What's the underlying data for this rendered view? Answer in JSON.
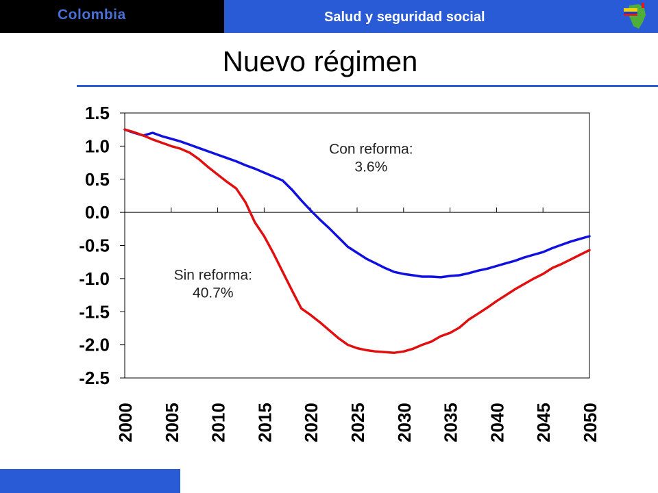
{
  "header": {
    "country": "Colombia",
    "section": "Salud y seguridad social",
    "logo_icon": "colombia-map-flag-icon",
    "colors": {
      "black_bar": "#000000",
      "blue_bar": "#2a5bd7",
      "country_text": "#4a6fd4"
    }
  },
  "page": {
    "title": "Nuevo régimen"
  },
  "chart_data": {
    "type": "line",
    "title": "",
    "xlabel": "",
    "ylabel": "",
    "xlim": [
      2000,
      2050
    ],
    "ylim": [
      -2.5,
      1.5
    ],
    "yticks": [
      "1.5",
      "1.0",
      "0.5",
      "0.0",
      "-0.5",
      "-1.0",
      "-1.5",
      "-2.0",
      "-2.5"
    ],
    "xticks": [
      "2000",
      "2005",
      "2010",
      "2015",
      "2020",
      "2025",
      "2030",
      "2035",
      "2040",
      "2045",
      "2050"
    ],
    "grid": false,
    "x": [
      2000,
      2001,
      2002,
      2003,
      2004,
      2005,
      2006,
      2007,
      2008,
      2009,
      2010,
      2011,
      2012,
      2013,
      2014,
      2015,
      2016,
      2017,
      2018,
      2019,
      2020,
      2021,
      2022,
      2023,
      2024,
      2025,
      2026,
      2027,
      2028,
      2029,
      2030,
      2031,
      2032,
      2033,
      2034,
      2035,
      2036,
      2037,
      2038,
      2039,
      2040,
      2041,
      2042,
      2043,
      2044,
      2045,
      2046,
      2047,
      2048,
      2049,
      2050
    ],
    "series": [
      {
        "name": "Con reforma",
        "color": "#1010e0",
        "values": [
          1.25,
          1.2,
          1.16,
          1.2,
          1.15,
          1.11,
          1.07,
          1.02,
          0.97,
          0.92,
          0.87,
          0.82,
          0.77,
          0.71,
          0.66,
          0.6,
          0.54,
          0.48,
          0.34,
          0.18,
          0.03,
          -0.11,
          -0.24,
          -0.38,
          -0.52,
          -0.61,
          -0.7,
          -0.77,
          -0.84,
          -0.9,
          -0.93,
          -0.95,
          -0.97,
          -0.97,
          -0.98,
          -0.96,
          -0.95,
          -0.92,
          -0.88,
          -0.85,
          -0.81,
          -0.77,
          -0.73,
          -0.68,
          -0.64,
          -0.6,
          -0.54,
          -0.49,
          -0.44,
          -0.4,
          -0.36
        ]
      },
      {
        "name": "Sin reforma",
        "color": "#e01010",
        "values": [
          1.25,
          1.21,
          1.16,
          1.1,
          1.05,
          1.0,
          0.96,
          0.9,
          0.8,
          0.68,
          0.57,
          0.46,
          0.36,
          0.15,
          -0.15,
          -0.36,
          -0.62,
          -0.9,
          -1.18,
          -1.45,
          -1.55,
          -1.66,
          -1.78,
          -1.9,
          -2.0,
          -2.05,
          -2.08,
          -2.1,
          -2.11,
          -2.12,
          -2.1,
          -2.06,
          -2.0,
          -1.95,
          -1.87,
          -1.82,
          -1.74,
          -1.62,
          -1.53,
          -1.44,
          -1.34,
          -1.25,
          -1.16,
          -1.08,
          -1.0,
          -0.93,
          -0.84,
          -0.78,
          -0.71,
          -0.64,
          -0.57
        ]
      }
    ],
    "annotations": [
      {
        "line1": "Con reforma:",
        "line2": "3.6%",
        "x": 2026.5,
        "y": 0.8
      },
      {
        "line1": "Sin reforma:",
        "line2": "40.7%",
        "x": 2009.5,
        "y": -1.1
      }
    ]
  }
}
